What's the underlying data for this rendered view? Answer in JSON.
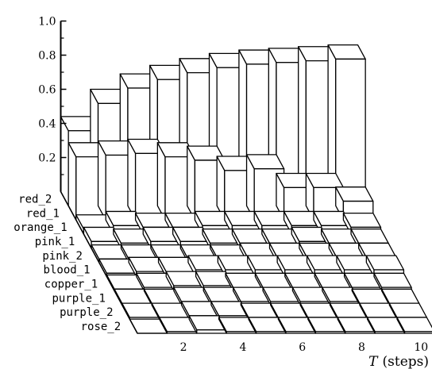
{
  "chart_data": {
    "type": "bar",
    "subtype": "3d-bar",
    "title": "",
    "xlabel_var": "T",
    "xlabel_unit": "(steps)",
    "ylabel": "",
    "zlim": [
      0,
      1.0
    ],
    "z_ticks": [
      "0.2",
      "0.4",
      "0.6",
      "0.8",
      "1.0"
    ],
    "x_ticks": [
      "2",
      "4",
      "6",
      "8",
      "10"
    ],
    "x": [
      1,
      2,
      3,
      4,
      5,
      6,
      7,
      8,
      9,
      10
    ],
    "grid": false,
    "legend": "none",
    "categories": [
      "red_2",
      "red_1",
      "orange_1",
      "pink_1",
      "pink_2",
      "blood_1",
      "copper_1",
      "purple_1",
      "purple_2",
      "rose_2"
    ],
    "series": [
      {
        "name": "red_2",
        "values": [
          0.44,
          0.6,
          0.69,
          0.74,
          0.78,
          0.81,
          0.83,
          0.84,
          0.85,
          0.86
        ]
      },
      {
        "name": "red_1",
        "values": [
          0.37,
          0.38,
          0.39,
          0.37,
          0.35,
          0.29,
          0.3,
          0.19,
          0.19,
          0.11
        ]
      },
      {
        "name": "orange_1",
        "values": [
          0.03,
          0.05,
          0.04,
          0.04,
          0.05,
          0.05,
          0.05,
          0.05,
          0.05,
          0.04
        ]
      },
      {
        "name": "pink_1",
        "values": [
          0.04,
          0.03,
          0.04,
          0.04,
          0.03,
          0.03,
          0.03,
          0.04,
          0.03,
          0.03
        ]
      },
      {
        "name": "pink_2",
        "values": [
          0.02,
          0.02,
          0.02,
          0.02,
          0.02,
          0.03,
          0.03,
          0.03,
          0.03,
          0.03
        ]
      },
      {
        "name": "blood_1",
        "values": [
          0.02,
          0.03,
          0.03,
          0.04,
          0.04,
          0.04,
          0.04,
          0.04,
          0.04,
          0.04
        ]
      },
      {
        "name": "copper_1",
        "values": [
          0.01,
          0.02,
          0.03,
          0.03,
          0.02,
          0.02,
          0.02,
          0.02,
          0.02,
          0.02
        ]
      },
      {
        "name": "purple_1",
        "values": [
          0.01,
          0.01,
          0.02,
          0.02,
          0.02,
          0.02,
          0.02,
          0.02,
          0.01,
          0.01
        ]
      },
      {
        "name": "purple_2",
        "values": [
          0.01,
          0.01,
          0.02,
          0.02,
          0.01,
          0.01,
          0.01,
          0.01,
          0.01,
          0.01
        ]
      },
      {
        "name": "rose_2",
        "values": [
          0.0,
          0.01,
          0.02,
          0.01,
          0.01,
          0.01,
          0.01,
          0.01,
          0.01,
          0.01
        ]
      }
    ]
  }
}
